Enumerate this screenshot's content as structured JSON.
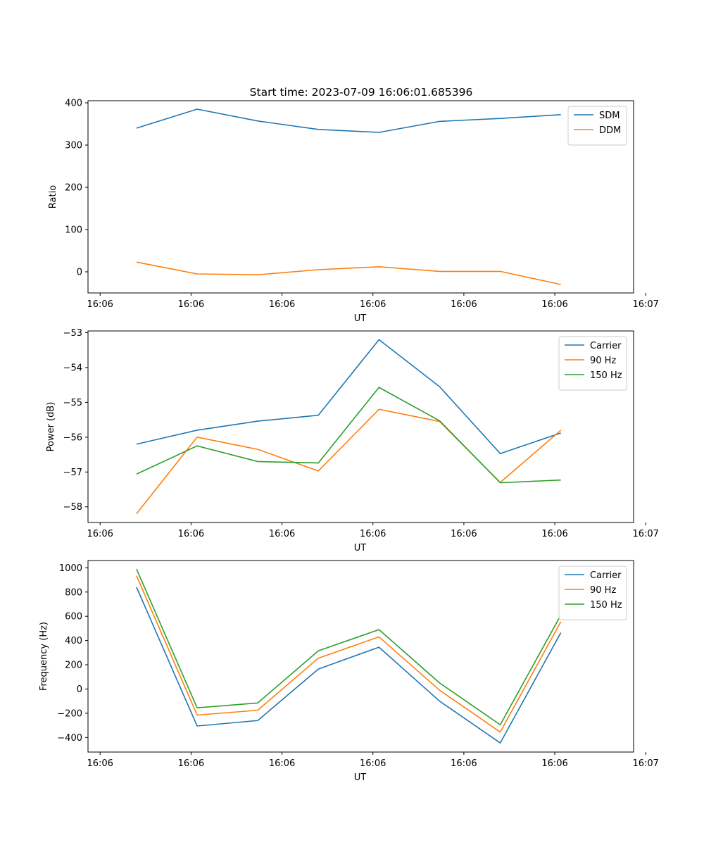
{
  "figure_title": "Start time: 2023-07-09 16:06:01.685396",
  "chart_data": [
    {
      "type": "line",
      "title": "Start time: 2023-07-09 16:06:01.685396",
      "xlabel": "UT",
      "ylabel": "Ratio",
      "x": [
        1,
        2,
        3,
        4,
        5,
        6,
        7,
        8
      ],
      "xlim": [
        0.2,
        9.2
      ],
      "x_ticks": [
        0.4,
        1.9,
        3.4,
        4.9,
        6.4,
        7.9,
        9.4
      ],
      "x_tick_labels": [
        "16:06",
        "16:06",
        "16:06",
        "16:06",
        "16:06",
        "16:06",
        "16:07"
      ],
      "ylim": [
        -50,
        405
      ],
      "y_ticks": [
        0,
        100,
        200,
        300,
        400
      ],
      "y_tick_labels": [
        "0",
        "100",
        "200",
        "300",
        "400"
      ],
      "legend_loc": "upper-right",
      "series": [
        {
          "name": "SDM",
          "color": "#1f77b4",
          "values": [
            340,
            385,
            357,
            337,
            330,
            356,
            363,
            372
          ]
        },
        {
          "name": "DDM",
          "color": "#ff7f0e",
          "values": [
            23,
            -5,
            -7,
            5,
            12,
            1,
            1,
            -30
          ]
        }
      ]
    },
    {
      "type": "line",
      "xlabel": "UT",
      "ylabel": "Power (dB)",
      "x": [
        1,
        2,
        3,
        4,
        5,
        6,
        7,
        8
      ],
      "xlim": [
        0.2,
        9.2
      ],
      "x_ticks": [
        0.4,
        1.9,
        3.4,
        4.9,
        6.4,
        7.9,
        9.4
      ],
      "x_tick_labels": [
        "16:06",
        "16:06",
        "16:06",
        "16:06",
        "16:06",
        "16:06",
        "16:07"
      ],
      "ylim": [
        -58.45,
        -52.95
      ],
      "y_ticks": [
        -58,
        -57,
        -56,
        -55,
        -54,
        -53
      ],
      "y_tick_labels": [
        "−58",
        "−57",
        "−56",
        "−55",
        "−54",
        "−53"
      ],
      "legend_loc": "upper-right",
      "series": [
        {
          "name": "Carrier",
          "color": "#1f77b4",
          "values": [
            -56.2,
            -55.8,
            -55.54,
            -55.37,
            -53.2,
            -54.55,
            -56.47,
            -55.88
          ]
        },
        {
          "name": "90 Hz",
          "color": "#ff7f0e",
          "values": [
            -58.2,
            -56.0,
            -56.35,
            -56.97,
            -55.2,
            -55.55,
            -57.3,
            -55.8
          ]
        },
        {
          "name": "150 Hz",
          "color": "#2ca02c",
          "values": [
            -57.06,
            -56.25,
            -56.7,
            -56.74,
            -54.57,
            -55.53,
            -57.31,
            -57.23
          ]
        }
      ]
    },
    {
      "type": "line",
      "xlabel": "UT",
      "ylabel": "Frequency (Hz)",
      "x": [
        1,
        2,
        3,
        4,
        5,
        6,
        7,
        8
      ],
      "xlim": [
        0.2,
        9.2
      ],
      "x_ticks": [
        0.4,
        1.9,
        3.4,
        4.9,
        6.4,
        7.9,
        9.4
      ],
      "x_tick_labels": [
        "16:06",
        "16:06",
        "16:06",
        "16:06",
        "16:06",
        "16:06",
        "16:07"
      ],
      "ylim": [
        -520,
        1060
      ],
      "y_ticks": [
        -400,
        -200,
        0,
        200,
        400,
        600,
        800,
        1000
      ],
      "y_tick_labels": [
        "−400",
        "−200",
        "0",
        "200",
        "400",
        "600",
        "800",
        "1000"
      ],
      "legend_loc": "upper-right",
      "series": [
        {
          "name": "Carrier",
          "color": "#1f77b4",
          "values": [
            840,
            -305,
            -260,
            165,
            345,
            -100,
            -445,
            465
          ]
        },
        {
          "name": "90 Hz",
          "color": "#ff7f0e",
          "values": [
            935,
            -215,
            -175,
            255,
            430,
            -10,
            -355,
            555
          ]
        },
        {
          "name": "150 Hz",
          "color": "#2ca02c",
          "values": [
            990,
            -155,
            -115,
            315,
            490,
            50,
            -295,
            610
          ]
        }
      ]
    }
  ]
}
